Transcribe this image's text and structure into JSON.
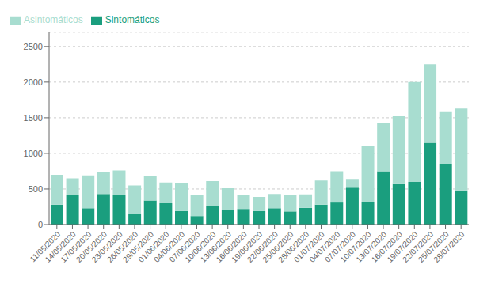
{
  "chart_data": {
    "type": "bar",
    "stacked": true,
    "categories": [
      "11/05/2020",
      "14/05/2020",
      "17/05/2020",
      "20/05/2020",
      "23/05/2020",
      "26/05/2020",
      "29/05/2020",
      "01/06/2020",
      "04/06/2020",
      "07/06/2020",
      "10/06/2020",
      "13/06/2020",
      "16/06/2020",
      "19/06/2020",
      "22/06/2020",
      "25/06/2020",
      "28/06/2020",
      "01/07/2020",
      "04/07/2020",
      "07/07/2020",
      "10/07/2020",
      "13/07/2020",
      "16/07/2020",
      "19/07/2020",
      "22/07/2020",
      "25/07/2020",
      "28/07/2020"
    ],
    "series": [
      {
        "name": "Sintomáticos",
        "color": "#1a9e7e",
        "values": [
          280,
          420,
          230,
          430,
          420,
          150,
          340,
          300,
          190,
          120,
          260,
          200,
          220,
          190,
          230,
          185,
          235,
          280,
          310,
          520,
          320,
          750,
          570,
          600,
          1150,
          850,
          480
        ]
      },
      {
        "name": "Asintomáticos",
        "color": "#a8ddd0",
        "values": [
          420,
          230,
          460,
          310,
          340,
          400,
          340,
          290,
          390,
          300,
          350,
          310,
          200,
          200,
          200,
          230,
          190,
          340,
          440,
          120,
          790,
          680,
          950,
          1400,
          1100,
          730,
          1150
        ]
      }
    ],
    "ylim": [
      0,
      2700
    ],
    "yticks": [
      0,
      500,
      1000,
      1500,
      2000,
      2500
    ],
    "grid": true,
    "legend": "upper left"
  }
}
